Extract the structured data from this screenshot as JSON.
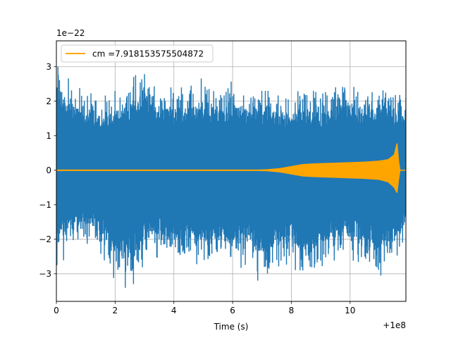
{
  "chart_data": {
    "type": "line",
    "title": "",
    "xlabel": "Time (s)",
    "ylabel": "",
    "x_offset_label": "+1e8",
    "y_scale_label": "1e−22",
    "xlim": [
      0,
      11.9
    ],
    "ylim": [
      -3.8,
      3.75
    ],
    "x_ticks": [
      0,
      2,
      4,
      6,
      8,
      10
    ],
    "y_ticks": [
      -3,
      -2,
      -1,
      0,
      1,
      2,
      3
    ],
    "x_tick_labels": [
      "0",
      "2",
      "4",
      "6",
      "8",
      "10"
    ],
    "y_tick_labels": [
      "−3",
      "−2",
      "−1",
      "0",
      "1",
      "2",
      "3"
    ],
    "grid": true,
    "legend": {
      "placement": "upper-left",
      "entries": [
        "cm =7.918153575504872"
      ]
    },
    "series": [
      {
        "role": "strain-noise",
        "color": "#1f77b4",
        "envelope_x": [
          0,
          0.5,
          1,
          1.5,
          2,
          2.5,
          3,
          3.5,
          4,
          4.5,
          5,
          5.5,
          6,
          6.5,
          7,
          7.5,
          8,
          8.5,
          9,
          9.5,
          10,
          10.5,
          11,
          11.5,
          11.9
        ],
        "envelope_upper": [
          3.4,
          2.5,
          2.3,
          2.1,
          2.3,
          2.6,
          3.0,
          2.4,
          2.4,
          2.4,
          2.7,
          2.3,
          2.6,
          2.3,
          2.3,
          2.3,
          2.2,
          2.4,
          2.2,
          2.4,
          2.7,
          2.2,
          2.6,
          2.3,
          2.3
        ],
        "envelope_lower": [
          -3.0,
          -2.2,
          -2.1,
          -2.4,
          -3.2,
          -3.5,
          -2.7,
          -2.5,
          -2.7,
          -2.5,
          -2.9,
          -2.6,
          -3.0,
          -2.7,
          -3.4,
          -2.8,
          -2.7,
          -3.4,
          -2.8,
          -2.6,
          -2.6,
          -2.7,
          -3.1,
          -2.6,
          -2.1
        ]
      },
      {
        "name": "cm =7.918153575504872",
        "role": "template",
        "color": "#ffa500",
        "envelope_x": [
          0,
          6.9,
          7.2,
          7.6,
          8.0,
          8.4,
          8.8,
          9.5,
          10.5,
          11.0,
          11.3,
          11.5,
          11.6,
          11.65,
          11.7,
          11.9
        ],
        "envelope_upper": [
          0.02,
          0.02,
          0.03,
          0.06,
          0.12,
          0.18,
          0.2,
          0.22,
          0.25,
          0.28,
          0.32,
          0.45,
          0.8,
          0.3,
          0.0,
          0.0
        ],
        "envelope_lower": [
          -0.02,
          -0.02,
          -0.03,
          -0.06,
          -0.12,
          -0.18,
          -0.2,
          -0.22,
          -0.25,
          -0.28,
          -0.35,
          -0.5,
          -0.66,
          -0.3,
          0.0,
          0.0
        ]
      }
    ]
  }
}
